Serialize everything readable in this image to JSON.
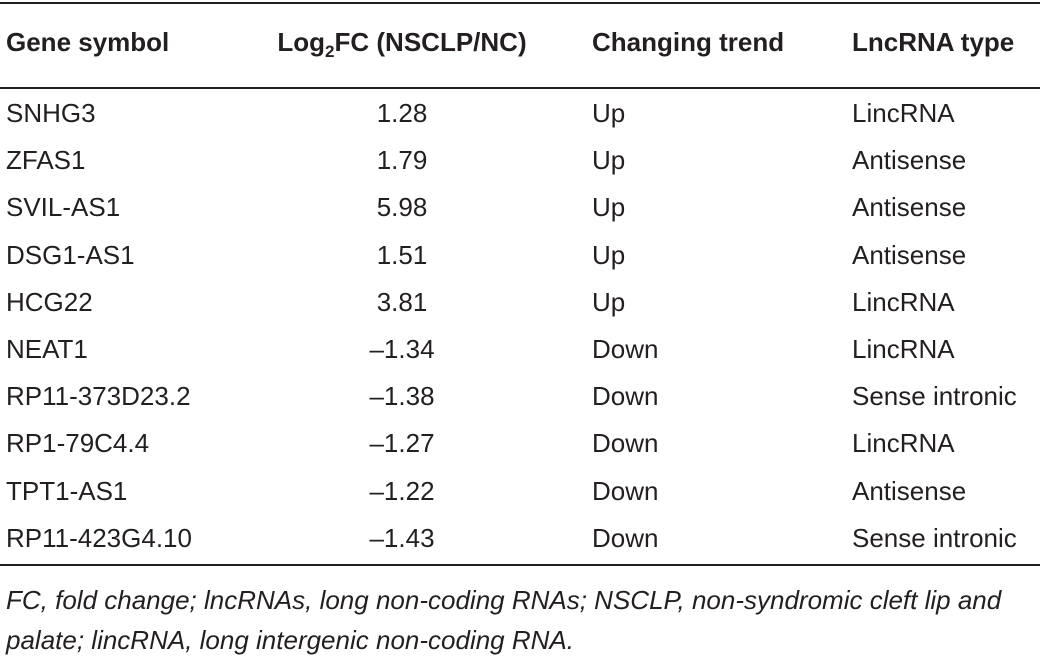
{
  "table": {
    "header": [
      "Gene symbol",
      {
        "main": "Log",
        "sub": "2",
        "tail": "FC (NSCLP/NC)"
      },
      "Changing trend",
      "LncRNA type"
    ],
    "rows": [
      [
        "SNHG3",
        "1.28",
        "Up",
        "LincRNA"
      ],
      [
        "ZFAS1",
        "1.79",
        "Up",
        "Antisense"
      ],
      [
        "SVIL-AS1",
        "5.98",
        "Up",
        "Antisense"
      ],
      [
        "DSG1-AS1",
        "1.51",
        "Up",
        "Antisense"
      ],
      [
        "HCG22",
        "3.81",
        "Up",
        "LincRNA"
      ],
      [
        "NEAT1",
        "–1.34",
        "Down",
        "LincRNA"
      ],
      [
        "RP11-373D23.2",
        "–1.38",
        "Down",
        "Sense intronic"
      ],
      [
        "RP1-79C4.4",
        "–1.27",
        "Down",
        "LincRNA"
      ],
      [
        "TPT1-AS1",
        "–1.22",
        "Down",
        "Antisense"
      ],
      [
        "RP11-423G4.10",
        "–1.43",
        "Down",
        "Sense intronic"
      ]
    ],
    "footnote": "FC, fold change; lncRNAs, long non-coding RNAs; NSCLP, non-syndromic cleft lip and palate; lincRNA, long intergenic non-coding RNA."
  }
}
